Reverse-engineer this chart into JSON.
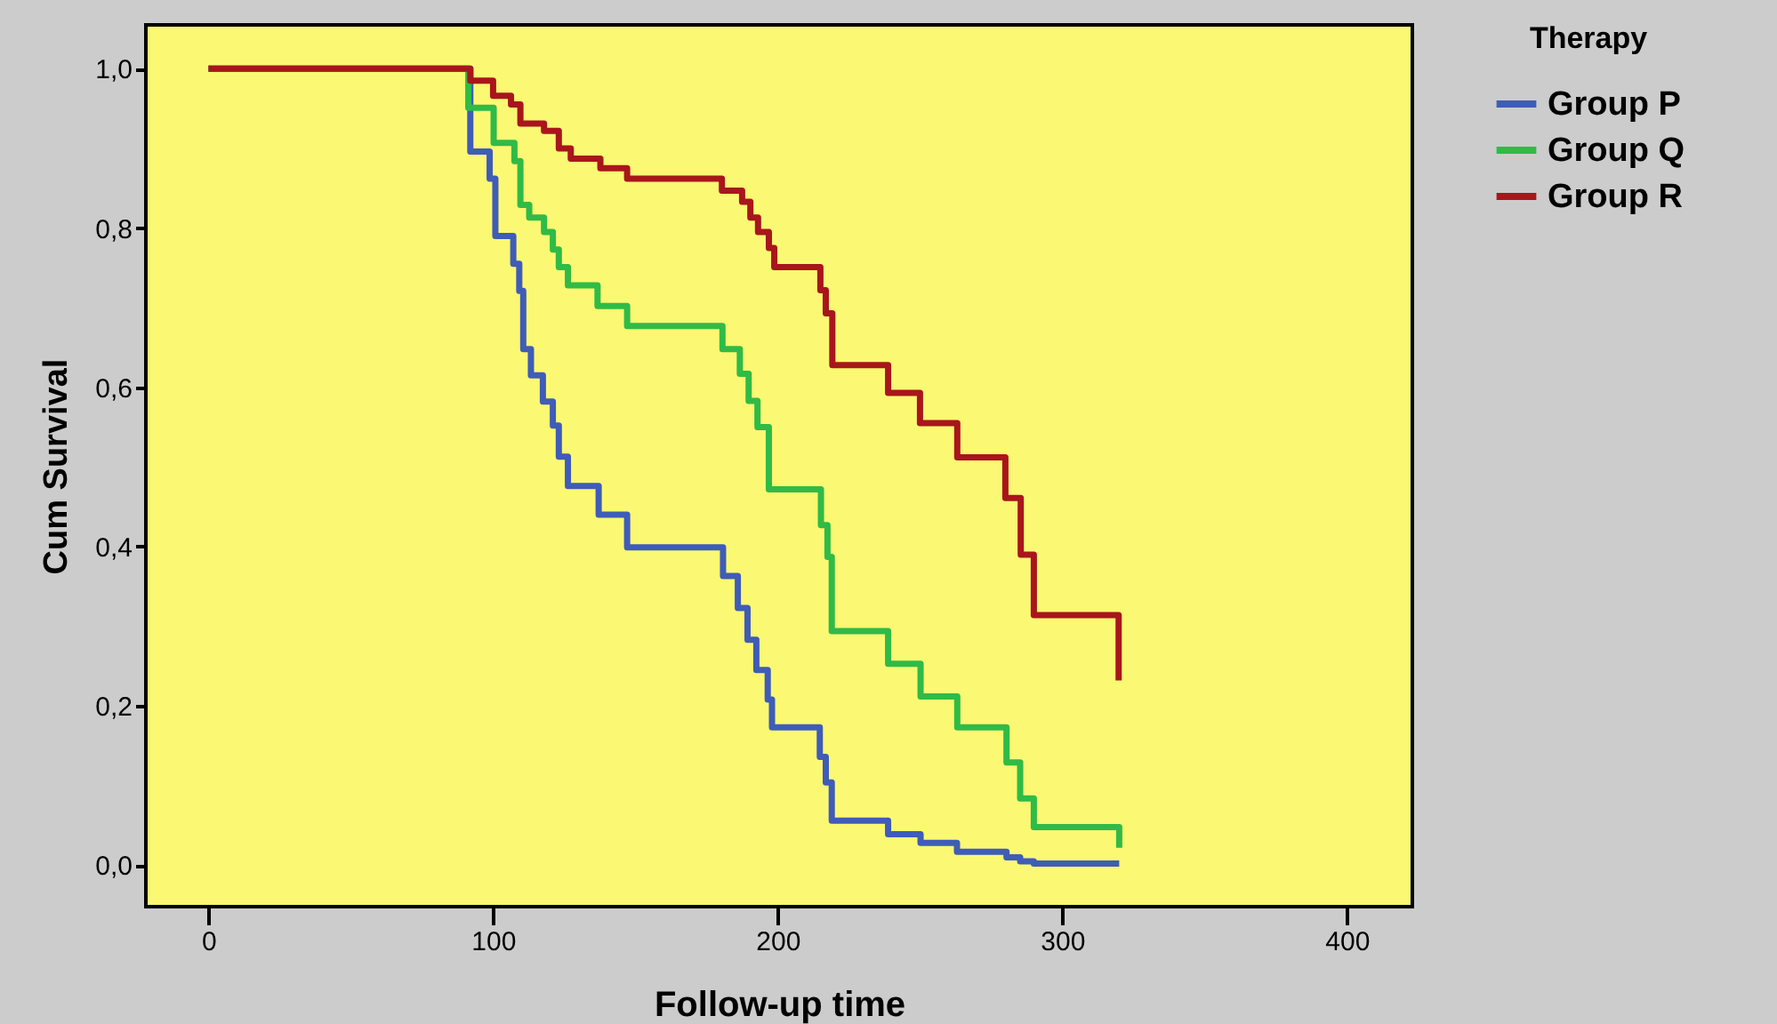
{
  "chart_data": {
    "type": "step",
    "xlabel": "Follow-up time",
    "ylabel": "Cum Survival",
    "legend_title": "Therapy",
    "xlim": [
      -22,
      423
    ],
    "xticks": [
      0,
      100,
      200,
      300,
      400
    ],
    "ylim": [
      -0.052,
      1.055
    ],
    "yticks": [
      {
        "value": 0,
        "label": "0,0"
      },
      {
        "value": 0.2,
        "label": "0,2"
      },
      {
        "value": 0.4,
        "label": "0,4"
      },
      {
        "value": 0.6,
        "label": "0,6"
      },
      {
        "value": 0.8,
        "label": "0,8"
      },
      {
        "value": 1,
        "label": "1,0"
      }
    ],
    "grid": false,
    "legend": "top right",
    "series": [
      {
        "name": "Group P",
        "color": "#3f5cb8",
        "x": [
          0,
          92,
          98.8,
          100.8,
          107.1,
          109.2,
          110.6,
          113.3,
          117.5,
          121,
          123.1,
          126.3,
          137.1,
          147.1,
          180.8,
          186,
          189.4,
          192.5,
          196.5,
          198,
          214.8,
          216.9,
          219,
          238.8,
          250.2,
          263,
          280.4,
          285.2,
          290,
          320
        ],
        "values": [
          1,
          0.896,
          0.862,
          0.79,
          0.755,
          0.721,
          0.648,
          0.615,
          0.582,
          0.552,
          0.513,
          0.476,
          0.44,
          0.399,
          0.363,
          0.323,
          0.283,
          0.245,
          0.208,
          0.173,
          0.136,
          0.104,
          0.056,
          0.039,
          0.028,
          0.017,
          0.01,
          0.005,
          0.002,
          0.002
        ]
      },
      {
        "name": "Group Q",
        "color": "#2fbb46",
        "x": [
          0,
          91.3,
          100.2,
          107.5,
          109.6,
          112.7,
          117.9,
          121,
          123.1,
          126.3,
          136.7,
          147.1,
          180.6,
          186.7,
          189.8,
          192.9,
          196.9,
          215.2,
          217.5,
          219,
          238.8,
          250.2,
          263.1,
          280.4,
          285.2,
          290,
          320
        ],
        "values": [
          1,
          0.951,
          0.907,
          0.884,
          0.829,
          0.813,
          0.795,
          0.773,
          0.751,
          0.728,
          0.702,
          0.677,
          0.648,
          0.617,
          0.583,
          0.55,
          0.472,
          0.427,
          0.387,
          0.294,
          0.253,
          0.212,
          0.173,
          0.129,
          0.084,
          0.048,
          0.022
        ]
      },
      {
        "name": "Group R",
        "color": "#a8161b",
        "x": [
          0,
          92,
          100,
          106.3,
          109.6,
          117.9,
          123.1,
          127.3,
          137.7,
          147.1,
          180.4,
          187.5,
          190.4,
          193.1,
          196.9,
          198.8,
          215,
          216.9,
          219.2,
          238.8,
          250,
          263.1,
          280,
          285.4,
          290,
          319.8
        ],
        "values": [
          1,
          0.985,
          0.966,
          0.955,
          0.931,
          0.922,
          0.9,
          0.887,
          0.875,
          0.862,
          0.847,
          0.833,
          0.813,
          0.795,
          0.775,
          0.751,
          0.722,
          0.693,
          0.628,
          0.593,
          0.555,
          0.512,
          0.461,
          0.39,
          0.314,
          0.232
        ]
      }
    ]
  }
}
